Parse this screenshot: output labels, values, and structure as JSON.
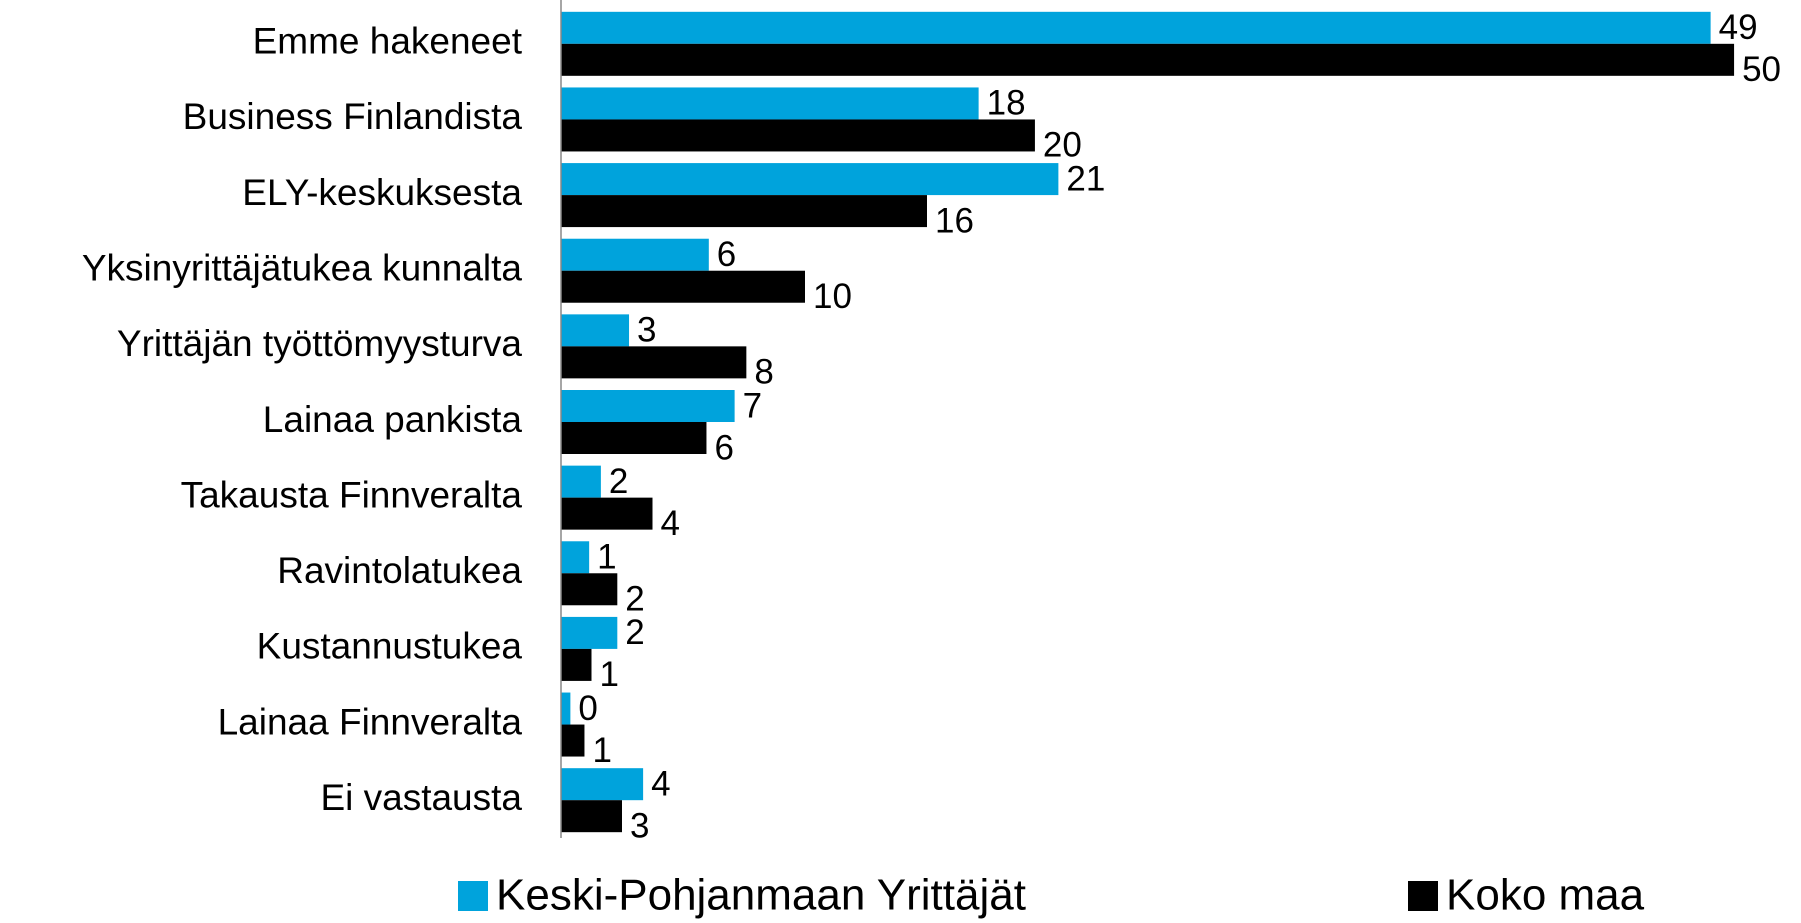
{
  "chart_data": {
    "type": "hbar",
    "categories": [
      "Emme hakeneet",
      "Business Finlandista",
      "ELY-keskuksesta",
      "Yksinyrittäjätukea kunnalta",
      "Yrittäjän työttömyysturva",
      "Lainaa pankista",
      "Takausta Finnveralta",
      "Ravintolatukea",
      "Kustannustukea",
      "Lainaa Finnveralta",
      "Ei vastausta"
    ],
    "series": [
      {
        "name": "Keski-Pohjanmaan Yrittäjät",
        "color": "#00a3dc",
        "values": [
          49,
          17.8,
          21.2,
          6.3,
          2.9,
          7.4,
          1.7,
          1.2,
          2.4,
          0.4,
          3.5
        ],
        "value_labels": [
          "49",
          "18",
          "21",
          "6",
          "3",
          "7",
          "2",
          "1",
          "2",
          "0",
          "4"
        ]
      },
      {
        "name": "Koko maa",
        "color": "#000000",
        "values": [
          50,
          20.2,
          15.6,
          10.4,
          7.9,
          6.2,
          3.9,
          2.4,
          1.3,
          1.0,
          2.6
        ],
        "value_labels": [
          "50",
          "20",
          "16",
          "10",
          "8",
          "6",
          "4",
          "2",
          "1",
          "1",
          "3"
        ]
      }
    ],
    "xlim": [
      0,
      52
    ],
    "legend": "bottom"
  }
}
